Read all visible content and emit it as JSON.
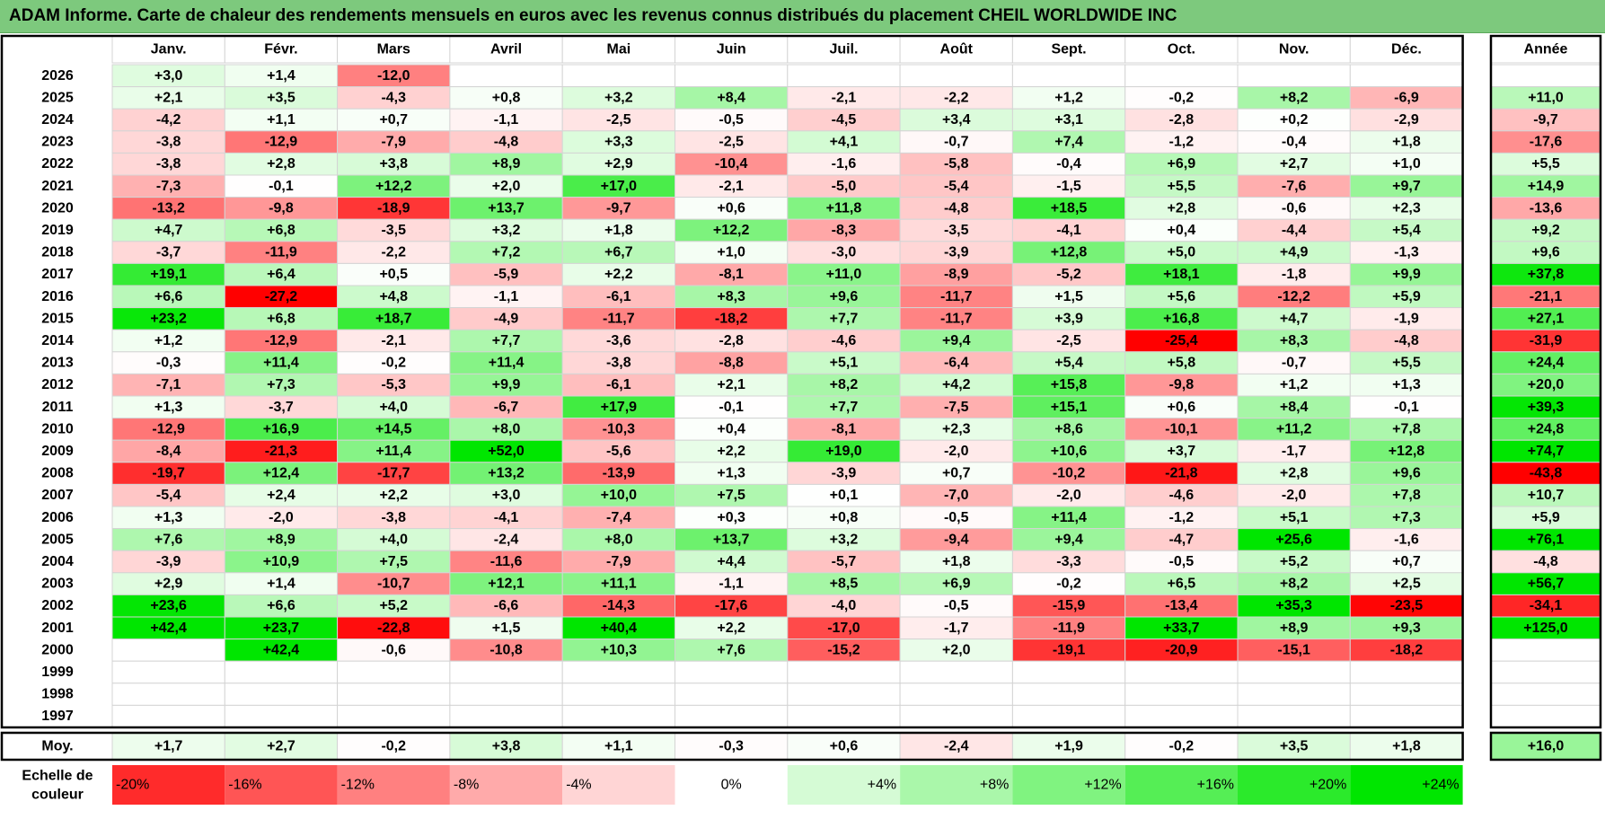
{
  "title": "ADAM Informe. Carte de chaleur des rendements mensuels en euros avec les revenus connus distribués du placement CHEIL WORLDWIDE INC",
  "colors": {
    "title_bg": "#7dc97d",
    "pos_max": "#00e400",
    "neg_max": "#ff0000",
    "neutral": "#ffffff"
  },
  "chart_data": {
    "type": "heatmap",
    "title": "ADAM Informe. Carte de chaleur des rendements mensuels en euros avec les revenus connus distribués du placement CHEIL WORLDWIDE INC",
    "months": [
      "Janv.",
      "Févr.",
      "Mars",
      "Avril",
      "Mai",
      "Juin",
      "Juil.",
      "Août",
      "Sept.",
      "Oct.",
      "Nov.",
      "Déc."
    ],
    "year_header": "Année",
    "rows": [
      {
        "year": "2026",
        "values": [
          "+3,0",
          "+1,4",
          "-12,0",
          "",
          "",
          "",
          "",
          "",
          "",
          "",
          "",
          ""
        ],
        "annual": ""
      },
      {
        "year": "2025",
        "values": [
          "+2,1",
          "+3,5",
          "-4,3",
          "+0,8",
          "+3,2",
          "+8,4",
          "-2,1",
          "-2,2",
          "+1,2",
          "-0,2",
          "+8,2",
          "-6,9"
        ],
        "annual": "+11,0"
      },
      {
        "year": "2024",
        "values": [
          "-4,2",
          "+1,1",
          "+0,7",
          "-1,1",
          "-2,5",
          "-0,5",
          "-4,5",
          "+3,4",
          "+3,1",
          "-2,8",
          "+0,2",
          "-2,9"
        ],
        "annual": "-9,7"
      },
      {
        "year": "2023",
        "values": [
          "-3,8",
          "-12,9",
          "-7,9",
          "-4,8",
          "+3,3",
          "-2,5",
          "+4,1",
          "-0,7",
          "+7,4",
          "-1,2",
          "-0,4",
          "+1,8"
        ],
        "annual": "-17,6"
      },
      {
        "year": "2022",
        "values": [
          "-3,8",
          "+2,8",
          "+3,8",
          "+8,9",
          "+2,9",
          "-10,4",
          "-1,6",
          "-5,8",
          "-0,4",
          "+6,9",
          "+2,7",
          "+1,0"
        ],
        "annual": "+5,5"
      },
      {
        "year": "2021",
        "values": [
          "-7,3",
          "-0,1",
          "+12,2",
          "+2,0",
          "+17,0",
          "-2,1",
          "-5,0",
          "-5,4",
          "-1,5",
          "+5,5",
          "-7,6",
          "+9,7"
        ],
        "annual": "+14,9"
      },
      {
        "year": "2020",
        "values": [
          "-13,2",
          "-9,8",
          "-18,9",
          "+13,7",
          "-9,7",
          "+0,6",
          "+11,8",
          "-4,8",
          "+18,5",
          "+2,8",
          "-0,6",
          "+2,3"
        ],
        "annual": "-13,6"
      },
      {
        "year": "2019",
        "values": [
          "+4,7",
          "+6,8",
          "-3,5",
          "+3,2",
          "+1,8",
          "+12,2",
          "-8,3",
          "-3,5",
          "-4,1",
          "+0,4",
          "-4,4",
          "+5,4"
        ],
        "annual": "+9,2"
      },
      {
        "year": "2018",
        "values": [
          "-3,7",
          "-11,9",
          "-2,2",
          "+7,2",
          "+6,7",
          "+1,0",
          "-3,0",
          "-3,9",
          "+12,8",
          "+5,0",
          "+4,9",
          "-1,3"
        ],
        "annual": "+9,6"
      },
      {
        "year": "2017",
        "values": [
          "+19,1",
          "+6,4",
          "+0,5",
          "-5,9",
          "+2,2",
          "-8,1",
          "+11,0",
          "-8,9",
          "-5,2",
          "+18,1",
          "-1,8",
          "+9,9"
        ],
        "annual": "+37,8"
      },
      {
        "year": "2016",
        "values": [
          "+6,6",
          "-27,2",
          "+4,8",
          "-1,1",
          "-6,1",
          "+8,3",
          "+9,6",
          "-11,7",
          "+1,5",
          "+5,6",
          "-12,2",
          "+5,9"
        ],
        "annual": "-21,1"
      },
      {
        "year": "2015",
        "values": [
          "+23,2",
          "+6,8",
          "+18,7",
          "-4,9",
          "-11,7",
          "-18,2",
          "+7,7",
          "-11,7",
          "+3,9",
          "+16,8",
          "+4,7",
          "-1,9"
        ],
        "annual": "+27,1"
      },
      {
        "year": "2014",
        "values": [
          "+1,2",
          "-12,9",
          "-2,1",
          "+7,7",
          "-3,6",
          "-2,8",
          "-4,6",
          "+9,4",
          "-2,5",
          "-25,4",
          "+8,3",
          "-4,8"
        ],
        "annual": "-31,9"
      },
      {
        "year": "2013",
        "values": [
          "-0,3",
          "+11,4",
          "-0,2",
          "+11,4",
          "-3,8",
          "-8,8",
          "+5,1",
          "-6,4",
          "+5,4",
          "+5,8",
          "-0,7",
          "+5,5"
        ],
        "annual": "+24,4"
      },
      {
        "year": "2012",
        "values": [
          "-7,1",
          "+7,3",
          "-5,3",
          "+9,9",
          "-6,1",
          "+2,1",
          "+8,2",
          "+4,2",
          "+15,8",
          "-9,8",
          "+1,2",
          "+1,3"
        ],
        "annual": "+20,0"
      },
      {
        "year": "2011",
        "values": [
          "+1,3",
          "-3,7",
          "+4,0",
          "-6,7",
          "+17,9",
          "-0,1",
          "+7,7",
          "-7,5",
          "+15,1",
          "+0,6",
          "+8,4",
          "-0,1"
        ],
        "annual": "+39,3"
      },
      {
        "year": "2010",
        "values": [
          "-12,9",
          "+16,9",
          "+14,5",
          "+8,0",
          "-10,3",
          "+0,4",
          "-8,1",
          "+2,3",
          "+8,6",
          "-10,1",
          "+11,2",
          "+7,8"
        ],
        "annual": "+24,8"
      },
      {
        "year": "2009",
        "values": [
          "-8,4",
          "-21,3",
          "+11,4",
          "+52,0",
          "-5,6",
          "+2,2",
          "+19,0",
          "-2,0",
          "+10,6",
          "+3,7",
          "-1,7",
          "+12,8"
        ],
        "annual": "+74,7"
      },
      {
        "year": "2008",
        "values": [
          "-19,7",
          "+12,4",
          "-17,7",
          "+13,2",
          "-13,9",
          "+1,3",
          "-3,9",
          "+0,7",
          "-10,2",
          "-21,8",
          "+2,8",
          "+9,6"
        ],
        "annual": "-43,8"
      },
      {
        "year": "2007",
        "values": [
          "-5,4",
          "+2,4",
          "+2,2",
          "+3,0",
          "+10,0",
          "+7,5",
          "+0,1",
          "-7,0",
          "-2,0",
          "-4,6",
          "-2,0",
          "+7,8"
        ],
        "annual": "+10,7"
      },
      {
        "year": "2006",
        "values": [
          "+1,3",
          "-2,0",
          "-3,8",
          "-4,1",
          "-7,4",
          "+0,3",
          "+0,8",
          "-0,5",
          "+11,4",
          "-1,2",
          "+5,1",
          "+7,3"
        ],
        "annual": "+5,9"
      },
      {
        "year": "2005",
        "values": [
          "+7,6",
          "+8,9",
          "+4,0",
          "-2,4",
          "+8,0",
          "+13,7",
          "+3,2",
          "-9,4",
          "+9,4",
          "-4,7",
          "+25,6",
          "-1,6"
        ],
        "annual": "+76,1"
      },
      {
        "year": "2004",
        "values": [
          "-3,9",
          "+10,9",
          "+7,5",
          "-11,6",
          "-7,9",
          "+4,4",
          "-5,7",
          "+1,8",
          "-3,3",
          "-0,5",
          "+5,2",
          "+0,7"
        ],
        "annual": "-4,8"
      },
      {
        "year": "2003",
        "values": [
          "+2,9",
          "+1,4",
          "-10,7",
          "+12,1",
          "+11,1",
          "-1,1",
          "+8,5",
          "+6,9",
          "-0,2",
          "+6,5",
          "+8,2",
          "+2,5"
        ],
        "annual": "+56,7"
      },
      {
        "year": "2002",
        "values": [
          "+23,6",
          "+6,6",
          "+5,2",
          "-6,6",
          "-14,3",
          "-17,6",
          "-4,0",
          "-0,5",
          "-15,9",
          "-13,4",
          "+35,3",
          "-23,5"
        ],
        "annual": "-34,1"
      },
      {
        "year": "2001",
        "values": [
          "+42,4",
          "+23,7",
          "-22,8",
          "+1,5",
          "+40,4",
          "+2,2",
          "-17,0",
          "-1,7",
          "-11,9",
          "+33,7",
          "+8,9",
          "+9,3"
        ],
        "annual": "+125,0"
      },
      {
        "year": "2000",
        "values": [
          "",
          "+42,4",
          "-0,6",
          "-10,8",
          "+10,3",
          "+7,6",
          "-15,2",
          "+2,0",
          "-19,1",
          "-20,9",
          "-15,1",
          "-18,2"
        ],
        "annual": ""
      },
      {
        "year": "1999",
        "values": [
          "",
          "",
          "",
          "",
          "",
          "",
          "",
          "",
          "",
          "",
          "",
          ""
        ],
        "annual": ""
      },
      {
        "year": "1998",
        "values": [
          "",
          "",
          "",
          "",
          "",
          "",
          "",
          "",
          "",
          "",
          "",
          ""
        ],
        "annual": ""
      },
      {
        "year": "1997",
        "values": [
          "",
          "",
          "",
          "",
          "",
          "",
          "",
          "",
          "",
          "",
          "",
          ""
        ],
        "annual": ""
      }
    ],
    "average": {
      "label": "Moy.",
      "values": [
        "+1,7",
        "+2,7",
        "-0,2",
        "+3,8",
        "+1,1",
        "-0,3",
        "+0,6",
        "-2,4",
        "+1,9",
        "-0,2",
        "+3,5",
        "+1,8"
      ],
      "annual": "+16,0"
    },
    "scale": {
      "label_line1": "Echelle de",
      "label_line2": "couleur",
      "steps": [
        {
          "label": "-20%",
          "value": -20
        },
        {
          "label": "-16%",
          "value": -16
        },
        {
          "label": "-12%",
          "value": -12
        },
        {
          "label": "-8%",
          "value": -8
        },
        {
          "label": "-4%",
          "value": -4
        },
        {
          "label": "0%",
          "value": 0
        },
        {
          "label": "+4%",
          "value": 4
        },
        {
          "label": "+8%",
          "value": 8
        },
        {
          "label": "+12%",
          "value": 12
        },
        {
          "label": "+16%",
          "value": 16
        },
        {
          "label": "+20%",
          "value": 20
        },
        {
          "label": "+24%",
          "value": 24
        }
      ]
    }
  }
}
